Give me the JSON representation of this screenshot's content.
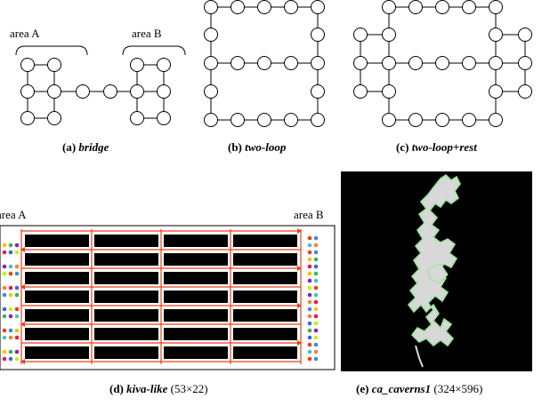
{
  "panels": {
    "a": {
      "tag": "(a)",
      "name": "bridge",
      "area_a": "area A",
      "area_b": "area B"
    },
    "b": {
      "tag": "(b)",
      "name": "two-loop"
    },
    "c": {
      "tag": "(c)",
      "name": "two-loop+rest"
    },
    "d": {
      "tag": "(d)",
      "name": "kiva-like",
      "dims": "(53×22)",
      "area_a": "area A",
      "area_b": "area B"
    },
    "e": {
      "tag": "(e)",
      "name": "ca_caverns1",
      "dims": "(324×596)"
    }
  },
  "colors": {
    "node_fill": "#ffffff",
    "edge": "#000000",
    "obstacle": "#000000",
    "arrow": "#e8401c",
    "cave_background": "#000000",
    "cave_outline": "#9be39b",
    "cave_fill": "#d8d8d8"
  }
}
